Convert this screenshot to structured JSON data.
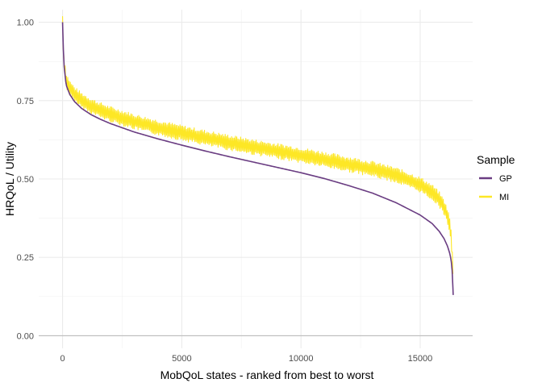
{
  "chart_data": {
    "type": "line",
    "title": "",
    "xlabel": "MobQoL states - ranked from best to worst",
    "ylabel": "HRQoL / Utility",
    "xlim": [
      -1000,
      17200
    ],
    "ylim": [
      -0.04,
      1.04
    ],
    "x_ticks": [
      0,
      5000,
      10000,
      15000
    ],
    "x_tick_labels": [
      "0",
      "5000",
      "10000",
      "15000"
    ],
    "y_ticks": [
      0.0,
      0.25,
      0.5,
      0.75,
      1.0
    ],
    "y_tick_labels": [
      "0.00",
      "0.25",
      "0.50",
      "0.75",
      "1.00"
    ],
    "grid": true,
    "legend_position": "right",
    "legend_title": "Sample",
    "series": [
      {
        "name": "GP",
        "color": "#6a3d82",
        "x": [
          0,
          50,
          150,
          300,
          500,
          800,
          1200,
          1600,
          2000,
          3000,
          4000,
          5000,
          6000,
          7000,
          8000,
          9000,
          10000,
          11000,
          12000,
          13000,
          14000,
          15000,
          15500,
          15800,
          16000,
          16150,
          16250,
          16300,
          16350,
          16384
        ],
        "values": [
          1.0,
          0.87,
          0.8,
          0.77,
          0.747,
          0.725,
          0.705,
          0.69,
          0.677,
          0.65,
          0.628,
          0.608,
          0.589,
          0.571,
          0.554,
          0.537,
          0.52,
          0.501,
          0.479,
          0.455,
          0.424,
          0.385,
          0.358,
          0.333,
          0.31,
          0.285,
          0.26,
          0.24,
          0.2,
          0.13
        ]
      },
      {
        "name": "MI",
        "color": "#fde725",
        "x": [
          0,
          50,
          150,
          300,
          500,
          800,
          1200,
          1600,
          2000,
          3000,
          4000,
          5000,
          6000,
          7000,
          8000,
          9000,
          10000,
          11000,
          12000,
          13000,
          14000,
          15000,
          15500,
          15800,
          16000,
          16150,
          16250,
          16300,
          16350,
          16384
        ],
        "values": [
          1.0,
          0.88,
          0.815,
          0.79,
          0.77,
          0.751,
          0.733,
          0.719,
          0.707,
          0.683,
          0.664,
          0.647,
          0.631,
          0.616,
          0.602,
          0.589,
          0.576,
          0.562,
          0.547,
          0.532,
          0.512,
          0.482,
          0.458,
          0.435,
          0.41,
          0.38,
          0.35,
          0.31,
          0.24,
          0.2
        ],
        "band_halfwidth": 0.025
      }
    ]
  }
}
